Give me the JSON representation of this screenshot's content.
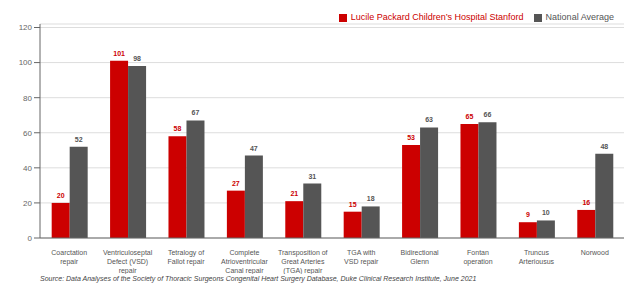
{
  "chart_data": {
    "type": "bar",
    "categories": [
      "Coarctation\nrepair",
      "Ventriculoseptal\nDefect (VSD)\nrepair",
      "Tetralogy of\nFallot repair",
      "Complete\nAtrioventricular\nCanal repair",
      "Transposition of\nGreat Arteries\n(TGA) repair",
      "TGA with\nVSD repair",
      "Bidirectional\nGlenn",
      "Fontan\noperation",
      "Truncus\nArteriousus",
      "Norwood"
    ],
    "series": [
      {
        "name": "Lucile Packard Children’s Hospital Stanford",
        "color": "#cc0000",
        "values": [
          20,
          101,
          58,
          27,
          21,
          15,
          53,
          65,
          9,
          16
        ]
      },
      {
        "name": "National Average",
        "color": "#555555",
        "values": [
          52,
          98,
          67,
          47,
          31,
          18,
          63,
          66,
          10,
          48
        ]
      }
    ],
    "ylim": [
      0,
      122
    ],
    "yticks": [
      0,
      20,
      40,
      60,
      80,
      100,
      120
    ],
    "grid": true,
    "legend": "upper right",
    "data_labels": true,
    "annotations": [
      "Source: Data Analyses of the Society of Thoracic Surgeons Congenital Heart Surgery Database, Duke Clinical Research Institute, June 2021"
    ]
  }
}
